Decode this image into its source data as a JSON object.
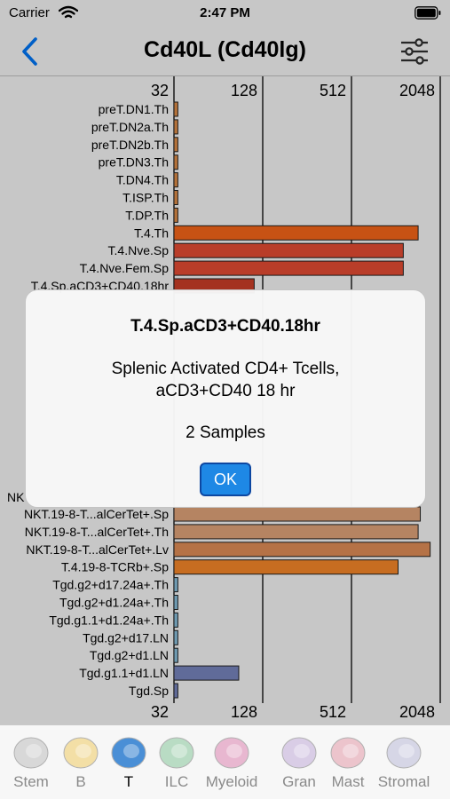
{
  "status_bar": {
    "carrier": "Carrier",
    "time": "2:47 PM"
  },
  "nav": {
    "title": "Cd40L (Cd40lg)",
    "back_icon": "chevron-left-icon",
    "filter_icon": "sliders-icon"
  },
  "colors": {
    "accent": "#007aff",
    "ok_button": "#1e88e5"
  },
  "chart_data": {
    "type": "bar",
    "orientation": "horizontal",
    "scale": "log2",
    "xlim": [
      32,
      2048
    ],
    "x_ticks": [
      "32",
      "128",
      "512",
      "2048"
    ],
    "grid": true,
    "rows": [
      {
        "label": "preT.DN1.Th",
        "value": 34,
        "color": "#e8934a"
      },
      {
        "label": "preT.DN2a.Th",
        "value": 34,
        "color": "#e8934a"
      },
      {
        "label": "preT.DN2b.Th",
        "value": 34,
        "color": "#e8934a"
      },
      {
        "label": "preT.DN3.Th",
        "value": 34,
        "color": "#e8934a"
      },
      {
        "label": "T.DN4.Th",
        "value": 34,
        "color": "#e8934a"
      },
      {
        "label": "T.ISP.Th",
        "value": 34,
        "color": "#e8934a"
      },
      {
        "label": "T.DP.Th",
        "value": 34,
        "color": "#e8934a"
      },
      {
        "label": "T.4.Th",
        "value": 1450,
        "color": "#ff6a1a"
      },
      {
        "label": "T.4.Nve.Sp",
        "value": 1150,
        "color": "#ee4f35"
      },
      {
        "label": "T.4.Nve.Fem.Sp",
        "value": 1150,
        "color": "#ee4f35"
      },
      {
        "label": "T.4.Sp.aCD3+CD40.18hr",
        "value": 112,
        "color": "#d2402a"
      },
      {
        "label": "NKT.19-8-T...alCerTet+.Sp",
        "value": 1500,
        "color": "#e8a97e"
      },
      {
        "label": "NKT.19-8-T...alCerTet+.Th",
        "value": 1450,
        "color": "#e8a97e"
      },
      {
        "label": "NKT.19-8-T...alCerTet+.Lv",
        "value": 1750,
        "color": "#e8935a"
      },
      {
        "label": "T.4.19-8-TCRb+.Sp",
        "value": 1060,
        "color": "#ff8c2b"
      },
      {
        "label": "Tgd.g2+d17.24a+.Th",
        "value": 34,
        "color": "#8fc7e5"
      },
      {
        "label": "Tgd.g2+d1.24a+.Th",
        "value": 34,
        "color": "#8fc7e5"
      },
      {
        "label": "Tgd.g1.1+d1.24a+.Th",
        "value": 34,
        "color": "#8fc7e5"
      },
      {
        "label": "Tgd.g2+d17.LN",
        "value": 34,
        "color": "#8fc7e5"
      },
      {
        "label": "Tgd.g2+d1.LN",
        "value": 34,
        "color": "#8fc7e5"
      },
      {
        "label": "Tgd.g1.1+d1.LN",
        "value": 88,
        "color": "#7b8ac4"
      },
      {
        "label": "Tgd.Sp",
        "value": 34,
        "color": "#7b8ac4"
      }
    ],
    "partial_label": "NK"
  },
  "alert": {
    "title": "T.4.Sp.aCD3+CD40.18hr",
    "description_line1": "Splenic Activated CD4+ Tcells,",
    "description_line2": "aCD3+CD40 18 hr",
    "samples": "2 Samples",
    "ok_label": "OK"
  },
  "tabs": [
    {
      "label": "Stem",
      "icon": "stem-cell-icon",
      "color": "#d8d8d8",
      "active": false
    },
    {
      "label": "B",
      "icon": "b-cell-icon",
      "color": "#f3dfa6",
      "active": false
    },
    {
      "label": "T",
      "icon": "t-cell-icon",
      "color": "#4a8fd6",
      "active": true
    },
    {
      "label": "ILC",
      "icon": "ilc-cell-icon",
      "color": "#b9dcc4",
      "active": false
    },
    {
      "label": "Myeloid",
      "icon": "myeloid-cell-icon",
      "color": "#e8b7d0",
      "active": false
    },
    {
      "label": "Gran",
      "icon": "granulocyte-icon",
      "color": "#d9cde6",
      "active": false
    },
    {
      "label": "Mast",
      "icon": "mast-cell-icon",
      "color": "#ecc4cc",
      "active": false
    },
    {
      "label": "Stromal",
      "icon": "stromal-cell-icon",
      "color": "#d6d6e6",
      "active": false
    }
  ]
}
